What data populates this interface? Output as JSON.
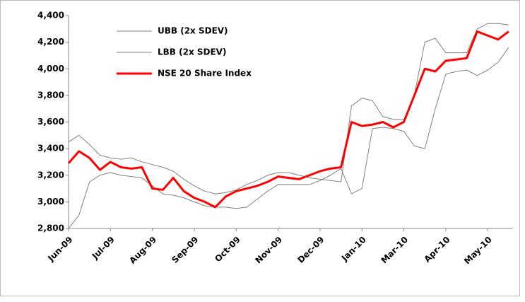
{
  "chart_data": {
    "type": "line",
    "categories": [
      "Jun-09",
      null,
      null,
      null,
      "Jul-09",
      null,
      null,
      null,
      "Aug-09",
      null,
      null,
      null,
      "Sep-09",
      null,
      null,
      null,
      "Oct-09",
      null,
      null,
      null,
      "Nov-09",
      null,
      null,
      null,
      "Dec-09",
      null,
      null,
      null,
      "Jan-10",
      null,
      null,
      null,
      "Mar-10",
      null,
      null,
      null,
      "Apr-10",
      null,
      null,
      null,
      "May-10",
      null,
      null
    ],
    "series": [
      {
        "name": "UBB (2x SDEV)",
        "color": "#808080",
        "values": [
          3450,
          3500,
          3430,
          3350,
          3330,
          3320,
          3330,
          3300,
          3280,
          3260,
          3230,
          3170,
          3120,
          3080,
          3060,
          3070,
          3090,
          3130,
          3160,
          3200,
          3220,
          3220,
          3200,
          3180,
          3170,
          3160,
          3150,
          3720,
          3780,
          3760,
          3640,
          3620,
          3620,
          3800,
          4200,
          4230,
          4120,
          4120,
          4120,
          4300,
          4340,
          4340,
          4330
        ]
      },
      {
        "name": "LBB (2x SDEV)",
        "color": "#808080",
        "values": [
          2800,
          2900,
          3150,
          3200,
          3220,
          3200,
          3190,
          3180,
          3120,
          3060,
          3050,
          3030,
          3000,
          2970,
          2960,
          2960,
          2950,
          2960,
          3020,
          3080,
          3130,
          3130,
          3130,
          3130,
          3160,
          3200,
          3250,
          3060,
          3100,
          3550,
          3560,
          3550,
          3530,
          3420,
          3400,
          3700,
          3960,
          3980,
          3990,
          3950,
          3990,
          4050,
          4160
        ]
      },
      {
        "name": "NSE 20 Share Index",
        "color": "#ff0000",
        "values": [
          3290,
          3380,
          3330,
          3240,
          3300,
          3260,
          3250,
          3260,
          3100,
          3090,
          3180,
          3080,
          3030,
          3000,
          2960,
          3040,
          3080,
          3100,
          3120,
          3150,
          3190,
          3180,
          3170,
          3200,
          3230,
          3250,
          3260,
          3600,
          3570,
          3580,
          3600,
          3560,
          3600,
          3800,
          4000,
          3980,
          4060,
          4070,
          4080,
          4280,
          4250,
          4220,
          4280
        ]
      }
    ],
    "ylim": [
      2800,
      4400
    ],
    "yticks": [
      {
        "value": 2800,
        "label": "2,800"
      },
      {
        "value": 3000,
        "label": "3,000"
      },
      {
        "value": 3200,
        "label": "3,200"
      },
      {
        "value": 3400,
        "label": "3,400"
      },
      {
        "value": 3600,
        "label": "3,600"
      },
      {
        "value": 3800,
        "label": "3,800"
      },
      {
        "value": 4000,
        "label": "4,000"
      },
      {
        "value": 4200,
        "label": "4,200"
      },
      {
        "value": 4400,
        "label": "4,400"
      }
    ],
    "legend": "upper-left",
    "grid": false
  }
}
